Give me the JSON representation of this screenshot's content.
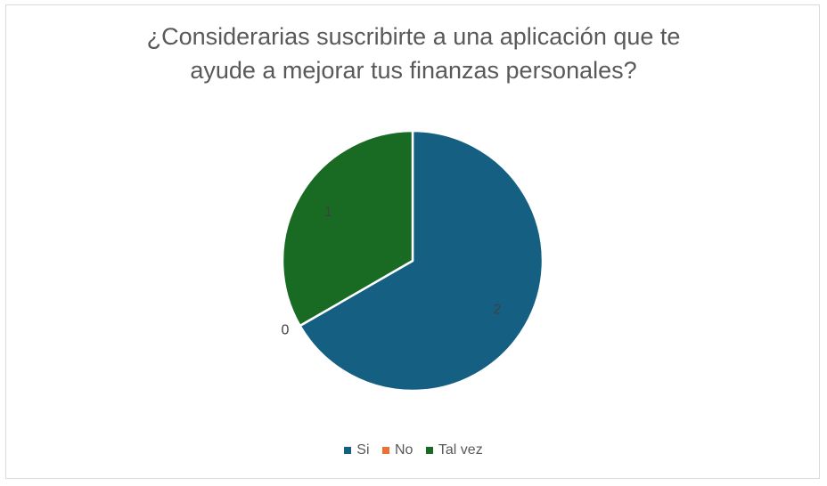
{
  "chart_data": {
    "type": "pie",
    "title_lines": [
      "¿Considerarias suscribirte a una aplicación que te",
      "ayude a mejorar tus finanzas personales?"
    ],
    "categories": [
      "Si",
      "No",
      "Tal vez"
    ],
    "values": [
      2,
      0,
      1
    ],
    "data_labels": [
      "2",
      "0",
      "1"
    ],
    "colors": [
      "#156082",
      "#E97132",
      "#196B24"
    ],
    "legend_position": "bottom"
  }
}
